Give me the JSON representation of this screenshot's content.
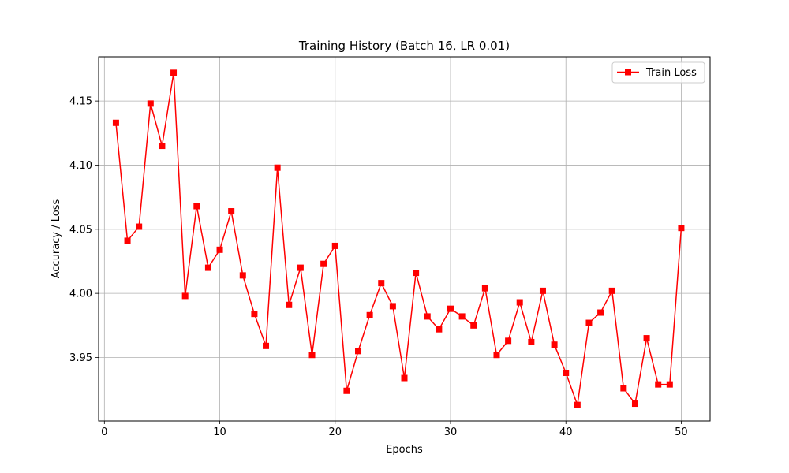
{
  "chart_data": {
    "type": "line",
    "title": "Training History (Batch 16, LR 0.01)",
    "xlabel": "Epochs",
    "ylabel": "Accuracy / Loss",
    "xlim": [
      -0.5,
      52.5
    ],
    "ylim": [
      3.9005,
      4.1845
    ],
    "xticks": [
      0,
      10,
      20,
      30,
      40,
      50
    ],
    "yticks": [
      3.95,
      4.0,
      4.05,
      4.1,
      4.15
    ],
    "xtick_labels": [
      "0",
      "10",
      "20",
      "30",
      "40",
      "50"
    ],
    "ytick_labels": [
      "3.95",
      "4.00",
      "4.05",
      "4.10",
      "4.15"
    ],
    "grid": true,
    "legend_position": "top-right",
    "series": [
      {
        "name": "Train Loss",
        "color": "#ff0000",
        "marker": "square",
        "x": [
          1,
          2,
          3,
          4,
          5,
          6,
          7,
          8,
          9,
          10,
          11,
          12,
          13,
          14,
          15,
          16,
          17,
          18,
          19,
          20,
          21,
          22,
          23,
          24,
          25,
          26,
          27,
          28,
          29,
          30,
          31,
          32,
          33,
          34,
          35,
          36,
          37,
          38,
          39,
          40,
          41,
          42,
          43,
          44,
          45,
          46,
          47,
          48,
          49,
          50
        ],
        "y": [
          4.133,
          4.041,
          4.052,
          4.148,
          4.115,
          4.172,
          3.998,
          4.068,
          4.02,
          4.034,
          4.064,
          4.014,
          3.984,
          3.959,
          4.098,
          3.991,
          4.02,
          3.952,
          4.023,
          4.037,
          3.924,
          3.955,
          3.983,
          4.008,
          3.99,
          3.934,
          4.016,
          3.982,
          3.972,
          3.988,
          3.982,
          3.975,
          4.004,
          3.952,
          3.963,
          3.993,
          3.962,
          4.002,
          3.96,
          3.938,
          3.913,
          3.977,
          3.985,
          4.002,
          3.926,
          3.914,
          3.965,
          3.929,
          3.929,
          4.051
        ]
      }
    ]
  }
}
